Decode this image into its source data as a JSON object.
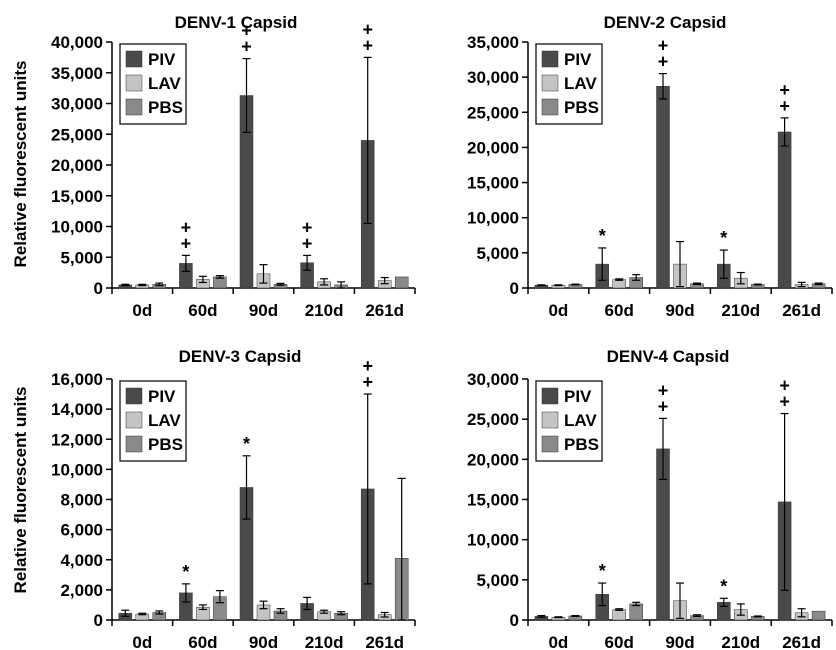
{
  "figure": {
    "ylabel": "Relative fluorescent units"
  },
  "legend": {
    "entries": [
      "PIV",
      "LAV",
      "PBS"
    ]
  },
  "colors": {
    "PIV": "#4a4a4a",
    "LAV": "#c4c4c4",
    "PBS": "#8a8a8a"
  },
  "chart_data": [
    {
      "type": "bar",
      "title": "DENV-1 Capsid",
      "ylabel": "Relative fluorescent units",
      "categories": [
        "0d",
        "60d",
        "90d",
        "210d",
        "261d"
      ],
      "ylim": [
        0,
        40000
      ],
      "yticks": [
        0,
        5000,
        10000,
        15000,
        20000,
        25000,
        30000,
        35000,
        40000
      ],
      "ytick_labels": [
        "0",
        "5,000",
        "10,000",
        "15,000",
        "20,000",
        "25,000",
        "30,000",
        "35,000",
        "40,000"
      ],
      "legend_position": "top-left",
      "series": [
        {
          "name": "PIV",
          "values": [
            500,
            4000,
            31300,
            4100,
            24000
          ],
          "errors": [
            100,
            1300,
            6000,
            1200,
            13500
          ]
        },
        {
          "name": "LAV",
          "values": [
            500,
            1400,
            2300,
            1000,
            1200
          ],
          "errors": [
            100,
            500,
            1500,
            500,
            500
          ]
        },
        {
          "name": "PBS",
          "values": [
            600,
            1800,
            600,
            500,
            1800
          ],
          "errors": [
            200,
            200,
            150,
            500,
            0
          ]
        }
      ],
      "annotations": [
        "",
        "++",
        "++",
        "++",
        "++"
      ]
    },
    {
      "type": "bar",
      "title": "DENV-2 Capsid",
      "ylabel": "",
      "categories": [
        "0d",
        "60d",
        "90d",
        "210d",
        "261d"
      ],
      "ylim": [
        0,
        35000
      ],
      "yticks": [
        0,
        5000,
        10000,
        15000,
        20000,
        25000,
        30000,
        35000
      ],
      "ytick_labels": [
        "0",
        "5,000",
        "10,000",
        "15,000",
        "20,000",
        "25,000",
        "30,000",
        "35,000"
      ],
      "legend_position": "top-left",
      "series": [
        {
          "name": "PIV",
          "values": [
            400,
            3400,
            28700,
            3400,
            22200
          ],
          "errors": [
            50,
            2300,
            1800,
            2000,
            2000
          ]
        },
        {
          "name": "LAV",
          "values": [
            400,
            1200,
            3400,
            1400,
            500
          ],
          "errors": [
            50,
            100,
            3200,
            800,
            300
          ]
        },
        {
          "name": "PBS",
          "values": [
            500,
            1500,
            600,
            500,
            600
          ],
          "errors": [
            50,
            400,
            100,
            50,
            100
          ]
        }
      ],
      "annotations": [
        "",
        "*",
        "++",
        "*",
        "++"
      ]
    },
    {
      "type": "bar",
      "title": "DENV-3 Capsid",
      "ylabel": "Relative fluorescent units",
      "categories": [
        "0d",
        "60d",
        "90d",
        "210d",
        "261d"
      ],
      "ylim": [
        0,
        16000
      ],
      "yticks": [
        0,
        2000,
        4000,
        6000,
        8000,
        10000,
        12000,
        14000,
        16000
      ],
      "ytick_labels": [
        "0",
        "2,000",
        "4,000",
        "6,000",
        "8,000",
        "10,000",
        "12,000",
        "14,000",
        "16,000"
      ],
      "legend_position": "top-left",
      "series": [
        {
          "name": "PIV",
          "values": [
            450,
            1800,
            8800,
            1100,
            8700
          ],
          "errors": [
            200,
            600,
            2100,
            400,
            6300
          ]
        },
        {
          "name": "LAV",
          "values": [
            400,
            850,
            1000,
            550,
            350
          ],
          "errors": [
            50,
            150,
            250,
            100,
            150
          ]
        },
        {
          "name": "PBS",
          "values": [
            500,
            1550,
            600,
            450,
            4100
          ],
          "errors": [
            100,
            400,
            150,
            100,
            5300
          ]
        }
      ],
      "annotations": [
        "",
        "*",
        "*",
        "",
        "++"
      ]
    },
    {
      "type": "bar",
      "title": "DENV-4 Capsid",
      "ylabel": "",
      "categories": [
        "0d",
        "60d",
        "90d",
        "210d",
        "261d"
      ],
      "ylim": [
        0,
        30000
      ],
      "yticks": [
        0,
        5000,
        10000,
        15000,
        20000,
        25000,
        30000
      ],
      "ytick_labels": [
        "0",
        "5,000",
        "10,000",
        "15,000",
        "20,000",
        "25,000",
        "30,000"
      ],
      "legend_position": "top-left",
      "series": [
        {
          "name": "PIV",
          "values": [
            450,
            3200,
            21300,
            2200,
            14700
          ],
          "errors": [
            100,
            1400,
            3800,
            500,
            11000
          ]
        },
        {
          "name": "LAV",
          "values": [
            350,
            1300,
            2400,
            1300,
            900
          ],
          "errors": [
            50,
            100,
            2200,
            700,
            500
          ]
        },
        {
          "name": "PBS",
          "values": [
            500,
            2000,
            550,
            450,
            1100
          ],
          "errors": [
            50,
            200,
            100,
            50,
            0
          ]
        }
      ],
      "annotations": [
        "",
        "*",
        "++",
        "*",
        "++"
      ]
    }
  ]
}
